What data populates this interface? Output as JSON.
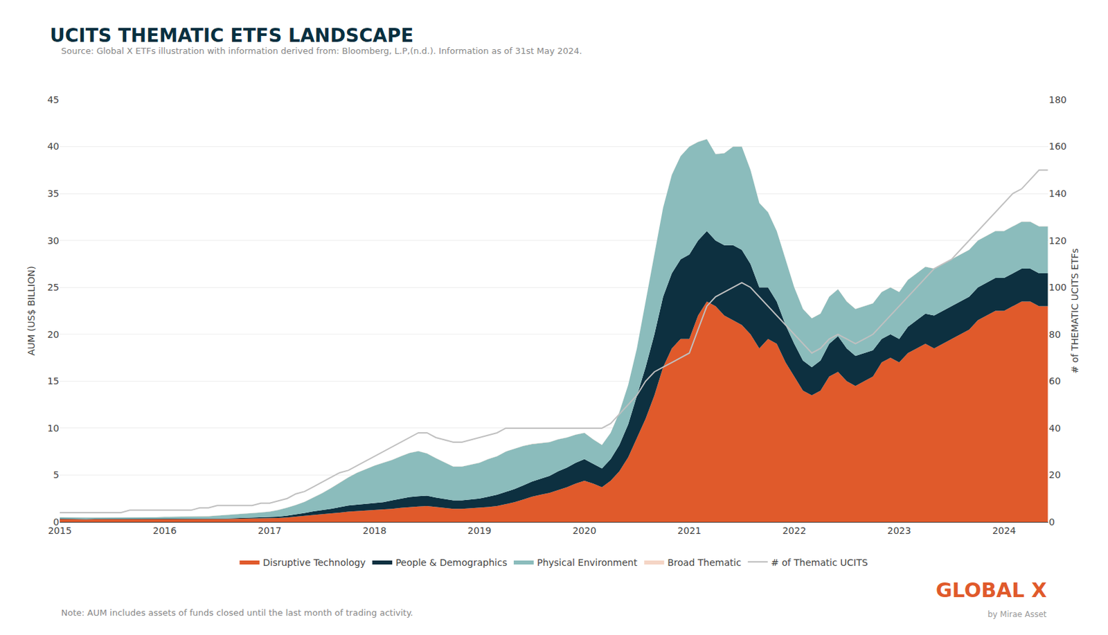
{
  "chart_data": {
    "type": "area",
    "title": "UCITS THEMATIC ETFS LANDSCAPE",
    "subtitle": "Source: Global X ETFs illustration with information derived from: Bloomberg, L.P,(n.d.). Information as of 31st May 2024.",
    "annotations": [
      {
        "text": "Note: AUM includes assets of funds closed until the last month of trading activity."
      },
      {
        "text": "GLOBAL X",
        "color": "#e05a2b"
      },
      {
        "text": "by Mirae Asset"
      }
    ],
    "ylabel": "AUM (US$ BILLION)",
    "y2label": "# of THEMATIC UCITS ETFs",
    "xlim": [
      2015.0,
      2024.42
    ],
    "xticks": [
      2015,
      2016,
      2017,
      2018,
      2019,
      2020,
      2021,
      2022,
      2023,
      2024
    ],
    "ylim": [
      0,
      45
    ],
    "yticks": [
      0,
      5,
      10,
      15,
      20,
      25,
      30,
      35,
      40,
      45
    ],
    "y2lim": [
      0,
      180
    ],
    "y2ticks": [
      0,
      20,
      40,
      60,
      80,
      100,
      120,
      140,
      160,
      180
    ],
    "grid": true,
    "stacked": true,
    "legend": "bottom",
    "x": [
      2015.0,
      2015.083,
      2015.167,
      2015.25,
      2015.333,
      2015.417,
      2015.5,
      2015.583,
      2015.667,
      2015.75,
      2015.833,
      2015.917,
      2016.0,
      2016.083,
      2016.167,
      2016.25,
      2016.333,
      2016.417,
      2016.5,
      2016.583,
      2016.667,
      2016.75,
      2016.833,
      2016.917,
      2017.0,
      2017.083,
      2017.167,
      2017.25,
      2017.333,
      2017.417,
      2017.5,
      2017.583,
      2017.667,
      2017.75,
      2017.833,
      2017.917,
      2018.0,
      2018.083,
      2018.167,
      2018.25,
      2018.333,
      2018.417,
      2018.5,
      2018.583,
      2018.667,
      2018.75,
      2018.833,
      2018.917,
      2019.0,
      2019.083,
      2019.167,
      2019.25,
      2019.333,
      2019.417,
      2019.5,
      2019.583,
      2019.667,
      2019.75,
      2019.833,
      2019.917,
      2020.0,
      2020.083,
      2020.167,
      2020.25,
      2020.333,
      2020.417,
      2020.5,
      2020.583,
      2020.667,
      2020.75,
      2020.833,
      2020.917,
      2021.0,
      2021.083,
      2021.167,
      2021.25,
      2021.333,
      2021.417,
      2021.5,
      2021.583,
      2021.667,
      2021.75,
      2021.833,
      2021.917,
      2022.0,
      2022.083,
      2022.167,
      2022.25,
      2022.333,
      2022.417,
      2022.5,
      2022.583,
      2022.667,
      2022.75,
      2022.833,
      2022.917,
      2023.0,
      2023.083,
      2023.167,
      2023.25,
      2023.333,
      2023.417,
      2023.5,
      2023.583,
      2023.667,
      2023.75,
      2023.833,
      2023.917,
      2024.0,
      2024.083,
      2024.167,
      2024.25,
      2024.333,
      2024.417
    ],
    "series": [
      {
        "name": "Disruptive Technology",
        "color": "#e05a2b",
        "values": [
          0.3,
          0.28,
          0.27,
          0.27,
          0.28,
          0.28,
          0.27,
          0.27,
          0.28,
          0.29,
          0.3,
          0.3,
          0.3,
          0.31,
          0.3,
          0.3,
          0.31,
          0.31,
          0.31,
          0.32,
          0.34,
          0.36,
          0.37,
          0.37,
          0.38,
          0.42,
          0.48,
          0.55,
          0.65,
          0.75,
          0.82,
          0.9,
          1.0,
          1.1,
          1.15,
          1.2,
          1.25,
          1.3,
          1.4,
          1.5,
          1.6,
          1.65,
          1.7,
          1.6,
          1.5,
          1.4,
          1.4,
          1.45,
          1.5,
          1.6,
          1.7,
          1.9,
          2.1,
          2.4,
          2.7,
          2.9,
          3.1,
          3.4,
          3.7,
          4.1,
          4.4,
          4.1,
          3.7,
          4.4,
          5.4,
          6.9,
          9.0,
          11.0,
          13.5,
          16.5,
          18.5,
          19.5,
          19.5,
          22.0,
          23.5,
          23.0,
          22.0,
          21.5,
          21.0,
          20.0,
          18.5,
          19.5,
          19.0,
          17.0,
          15.5,
          14.0,
          13.5,
          14.0,
          15.5,
          16.0,
          15.0,
          14.5,
          15.0,
          15.5,
          17.0,
          17.5,
          17.0,
          18.0,
          18.5,
          19.0,
          18.5,
          19.0,
          19.5,
          20.0,
          20.5,
          21.5,
          22.0,
          22.5,
          22.5,
          23.0,
          23.5,
          23.5,
          23.0,
          23.0
        ]
      },
      {
        "name": "People & Demographics",
        "color": "#0d3040",
        "values": [
          0.05,
          0.05,
          0.05,
          0.05,
          0.05,
          0.05,
          0.05,
          0.05,
          0.05,
          0.05,
          0.05,
          0.05,
          0.05,
          0.05,
          0.05,
          0.05,
          0.05,
          0.05,
          0.06,
          0.06,
          0.07,
          0.08,
          0.09,
          0.09,
          0.12,
          0.15,
          0.2,
          0.25,
          0.3,
          0.38,
          0.44,
          0.5,
          0.58,
          0.65,
          0.7,
          0.72,
          0.75,
          0.8,
          0.9,
          1.0,
          1.05,
          1.1,
          1.1,
          1.0,
          0.95,
          0.9,
          0.9,
          0.95,
          1.0,
          1.1,
          1.2,
          1.3,
          1.4,
          1.5,
          1.6,
          1.7,
          1.8,
          2.0,
          2.1,
          2.2,
          2.3,
          2.1,
          2.0,
          2.3,
          2.8,
          3.5,
          4.5,
          5.5,
          6.5,
          7.5,
          8.0,
          8.5,
          9.0,
          8.0,
          7.5,
          7.0,
          7.5,
          8.0,
          8.0,
          7.5,
          6.5,
          5.5,
          4.5,
          4.0,
          3.5,
          3.2,
          3.0,
          3.2,
          3.5,
          3.8,
          3.5,
          3.2,
          3.0,
          2.8,
          2.5,
          2.5,
          2.5,
          2.8,
          3.0,
          3.2,
          3.5,
          3.5,
          3.5,
          3.5,
          3.5,
          3.5,
          3.5,
          3.5,
          3.5,
          3.5,
          3.5,
          3.5,
          3.5,
          3.5
        ]
      },
      {
        "name": "Physical Environment",
        "color": "#8bbcbc",
        "values": [
          0.15,
          0.15,
          0.15,
          0.15,
          0.15,
          0.15,
          0.15,
          0.13,
          0.13,
          0.13,
          0.15,
          0.15,
          0.2,
          0.2,
          0.2,
          0.2,
          0.2,
          0.25,
          0.3,
          0.35,
          0.4,
          0.45,
          0.5,
          0.55,
          0.6,
          0.7,
          0.85,
          1.0,
          1.2,
          1.5,
          1.8,
          2.2,
          2.6,
          3.0,
          3.4,
          3.7,
          4.0,
          4.2,
          4.3,
          4.5,
          4.7,
          4.8,
          4.5,
          4.2,
          3.9,
          3.6,
          3.6,
          3.7,
          3.8,
          4.0,
          4.1,
          4.3,
          4.3,
          4.2,
          4.0,
          3.8,
          3.6,
          3.4,
          3.2,
          3.0,
          2.8,
          2.6,
          2.5,
          2.8,
          3.5,
          4.2,
          5.0,
          7.0,
          8.5,
          9.5,
          10.5,
          11.0,
          11.5,
          10.5,
          9.8,
          9.2,
          9.8,
          10.5,
          11.0,
          10.0,
          9.0,
          8.0,
          7.5,
          7.0,
          6.0,
          5.5,
          5.2,
          5.0,
          5.0,
          5.0,
          5.0,
          5.0,
          5.0,
          5.0,
          5.0,
          5.0,
          5.0,
          5.0,
          5.0,
          5.0,
          5.0,
          5.0,
          5.0,
          5.0,
          5.0,
          5.0,
          5.0,
          5.0,
          5.0,
          5.0,
          5.0,
          5.0,
          5.0,
          5.0
        ]
      },
      {
        "name": "Broad Thematic",
        "color": "#f5d5c5",
        "values": [
          0.02,
          0.02,
          0.02,
          0.02,
          0.02,
          0.02,
          0.02,
          0.02,
          0.02,
          0.02,
          0.02,
          0.02,
          0.02,
          0.02,
          0.02,
          0.02,
          0.02,
          0.02,
          0.02,
          0.02,
          0.02,
          0.02,
          0.02,
          0.02,
          0.02,
          0.02,
          0.02,
          0.02,
          0.02,
          0.02,
          0.02,
          0.02,
          0.02,
          0.02,
          0.02,
          0.02,
          0.02,
          0.02,
          0.02,
          0.02,
          0.02,
          0.02,
          0.02,
          0.02,
          0.02,
          0.02,
          0.02,
          0.02,
          0.02,
          0.02,
          0.02,
          0.02,
          0.02,
          0.02,
          0.02,
          0.02,
          0.02,
          0.02,
          0.02,
          0.02,
          0.02,
          0.02,
          0.02,
          0.02,
          0.02,
          0.02,
          0.02,
          0.02,
          0.02,
          0.02,
          0.02,
          0.02,
          0.02,
          0.02,
          0.02,
          0.02,
          0.02,
          0.02,
          0.02,
          0.02,
          0.02,
          0.02,
          0.02,
          0.02,
          0.02,
          0.02,
          0.02,
          0.02,
          0.02,
          0.02,
          0.02,
          0.02,
          0.02,
          0.02,
          0.02,
          0.02,
          0.02,
          0.02,
          0.02,
          0.02,
          0.02,
          0.02,
          0.02,
          0.02,
          0.02,
          0.02,
          0.02,
          0.02,
          0.02,
          0.02,
          0.02,
          0.02,
          0.02,
          0.02
        ]
      },
      {
        "name": "# of Thematic UCITS",
        "color": "#c0c0c0",
        "type": "line",
        "axis": "y2",
        "values": [
          4,
          4,
          4,
          4,
          4,
          4,
          4,
          4,
          5,
          5,
          5,
          5,
          5,
          5,
          5,
          5,
          6,
          6,
          7,
          7,
          7,
          7,
          7,
          8,
          8,
          9,
          10,
          12,
          13,
          15,
          17,
          19,
          21,
          22,
          24,
          26,
          28,
          30,
          32,
          34,
          36,
          38,
          38,
          36,
          35,
          34,
          34,
          35,
          36,
          37,
          38,
          40,
          40,
          40,
          40,
          40,
          40,
          40,
          40,
          40,
          40,
          40,
          40,
          42,
          46,
          50,
          54,
          60,
          64,
          66,
          68,
          70,
          72,
          82,
          92,
          96,
          98,
          100,
          102,
          100,
          96,
          92,
          88,
          84,
          80,
          76,
          72,
          74,
          78,
          80,
          78,
          76,
          78,
          80,
          84,
          88,
          92,
          96,
          100,
          104,
          108,
          110,
          112,
          116,
          120,
          124,
          128,
          132,
          136,
          140,
          142,
          146,
          150,
          150
        ]
      }
    ]
  }
}
